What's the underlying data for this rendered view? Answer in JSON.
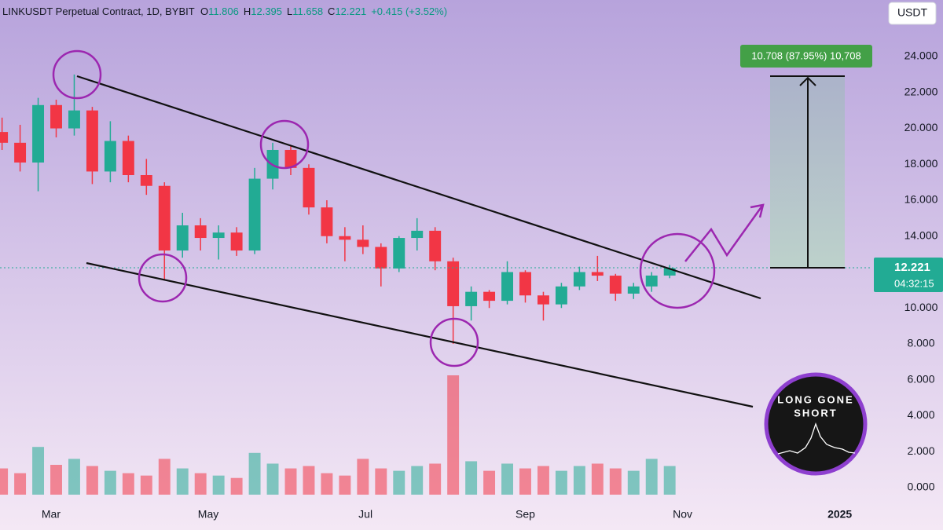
{
  "chart_data": {
    "type": "candlestick",
    "title": "LINKUSDT Perpetual Contract, 1D, BYBIT",
    "x": [
      -19,
      -12,
      -5,
      2,
      9,
      16,
      23,
      30,
      37,
      44,
      51,
      58,
      65,
      72,
      79,
      86,
      93,
      100,
      107,
      114,
      121,
      128,
      135,
      142,
      149,
      156,
      163,
      170,
      177,
      184,
      191,
      198,
      205,
      212,
      219,
      226,
      233,
      240
    ],
    "open": [
      19.8,
      19.2,
      18.1,
      21.3,
      20.0,
      21.0,
      17.6,
      19.3,
      17.4,
      16.8,
      13.2,
      14.6,
      13.9,
      14.2,
      13.2,
      17.2,
      18.8,
      17.8,
      15.6,
      14.0,
      13.8,
      13.4,
      12.2,
      13.9,
      14.3,
      12.6,
      10.1,
      10.9,
      10.4,
      12.0,
      10.7,
      10.2,
      11.2,
      12.0,
      11.8,
      10.8,
      11.2,
      11.806
    ],
    "high": [
      20.6,
      20.2,
      21.7,
      21.6,
      23.0,
      21.2,
      20.4,
      19.6,
      18.3,
      17.0,
      15.3,
      15.0,
      14.6,
      14.5,
      17.8,
      19.2,
      19.0,
      18.0,
      16.0,
      14.5,
      14.6,
      13.6,
      14.0,
      15.0,
      14.5,
      12.8,
      11.2,
      11.0,
      12.6,
      12.1,
      10.9,
      11.4,
      12.3,
      12.9,
      11.9,
      11.4,
      12.0,
      12.395
    ],
    "low": [
      18.8,
      17.6,
      16.5,
      19.5,
      19.6,
      16.9,
      17.0,
      17.0,
      16.3,
      11.6,
      12.8,
      13.2,
      12.7,
      12.9,
      13.0,
      16.6,
      17.4,
      15.2,
      13.6,
      12.6,
      13.0,
      11.2,
      12.0,
      13.2,
      12.1,
      8.0,
      9.3,
      10.0,
      10.2,
      10.3,
      9.3,
      10.0,
      11.0,
      11.5,
      10.4,
      10.5,
      10.9,
      11.658
    ],
    "close": [
      19.2,
      18.1,
      21.3,
      20.0,
      21.0,
      17.6,
      19.3,
      17.4,
      16.8,
      13.2,
      14.6,
      13.9,
      14.2,
      13.2,
      17.2,
      18.8,
      17.8,
      15.6,
      14.0,
      13.8,
      13.4,
      12.2,
      13.9,
      14.3,
      12.6,
      10.1,
      10.9,
      10.4,
      12.0,
      10.7,
      10.2,
      11.2,
      12.0,
      11.8,
      10.8,
      11.2,
      11.806,
      12.221
    ],
    "volume": [
      22,
      18,
      40,
      25,
      30,
      24,
      20,
      18,
      16,
      30,
      22,
      18,
      16,
      14,
      35,
      26,
      22,
      24,
      18,
      16,
      30,
      22,
      20,
      24,
      26,
      100,
      28,
      20,
      26,
      22,
      24,
      20,
      24,
      26,
      22,
      20,
      30,
      24
    ],
    "up_color": "#22ab94",
    "down_color": "#f23645",
    "xlim": [
      -19.8,
      318.6
    ],
    "xticks": [
      {
        "value": 0,
        "label": "Mar"
      },
      {
        "value": 61,
        "label": "May"
      },
      {
        "value": 122,
        "label": "Jul"
      },
      {
        "value": 184,
        "label": "Sep"
      },
      {
        "value": 245,
        "label": "Nov"
      },
      {
        "value": 306,
        "label": "2025"
      }
    ],
    "ylim": [
      -1.27,
      27.15
    ],
    "yticks": [
      {
        "value": 0,
        "label": "0.000"
      },
      {
        "value": 2,
        "label": "2.000"
      },
      {
        "value": 4,
        "label": "4.000"
      },
      {
        "value": 6,
        "label": "6.000"
      },
      {
        "value": 8,
        "label": "8.000"
      },
      {
        "value": 10,
        "label": "10.000"
      },
      {
        "value": 12,
        "label": "12.000"
      },
      {
        "value": 14,
        "label": "14.000"
      },
      {
        "value": 16,
        "label": "16.000"
      },
      {
        "value": 18,
        "label": "18.000"
      },
      {
        "value": 20,
        "label": "20.000"
      },
      {
        "value": 22,
        "label": "22.000"
      },
      {
        "value": 24,
        "label": "24.000"
      }
    ],
    "y2lim": [
      0,
      100
    ]
  },
  "header": {
    "o_label": "O",
    "o": 11.806,
    "h_label": "H",
    "h": 12.395,
    "l_label": "L",
    "l": 11.658,
    "c_label": "C",
    "c": 12.221,
    "change": "+0.415 (+3.52%)"
  },
  "currency": "USDT",
  "last_price": {
    "value": 12.221,
    "countdown": "04:32:15"
  },
  "measure": {
    "label": "10.708 (87.95%) 10,708"
  },
  "logo": {
    "line1": "LONG GONE",
    "line2": "SHORT"
  }
}
